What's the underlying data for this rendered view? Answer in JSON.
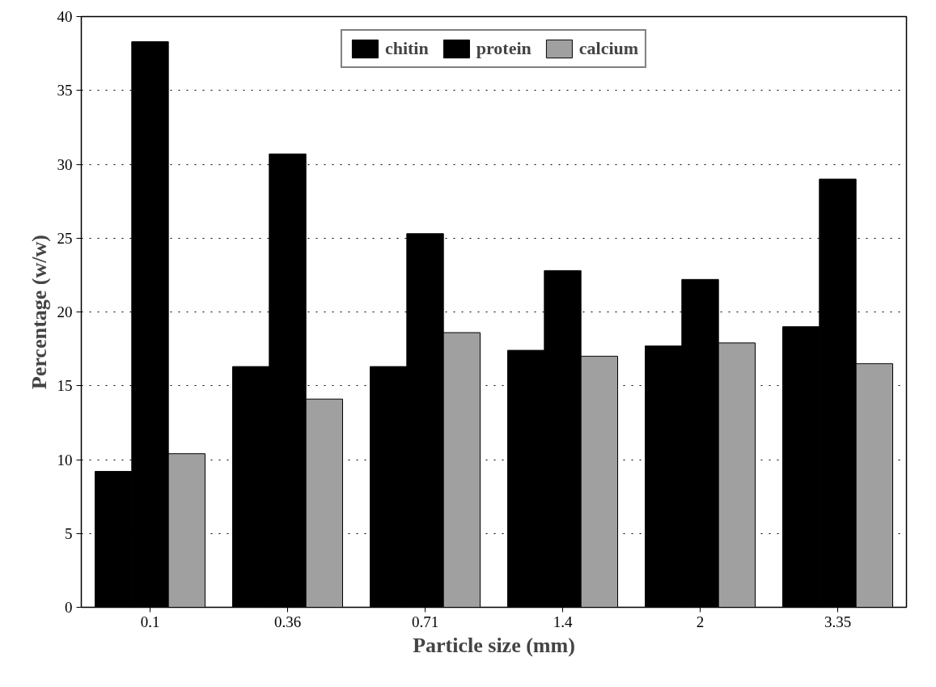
{
  "chart_data": {
    "type": "bar",
    "xlabel": "Particle size (mm)",
    "ylabel": "Percentage (w/w)",
    "categories": [
      "0.1",
      "0.36",
      "0.71",
      "1.4",
      "2",
      "3.35"
    ],
    "series": [
      {
        "name": "chitin",
        "color": "#000000",
        "values": [
          9.2,
          16.3,
          16.3,
          17.4,
          17.7,
          19.0
        ]
      },
      {
        "name": "protein",
        "color": "#000000",
        "values": [
          38.3,
          30.7,
          25.3,
          22.8,
          22.2,
          29.0
        ]
      },
      {
        "name": "calcium",
        "color": "#a0a0a0",
        "values": [
          10.4,
          14.1,
          18.6,
          17.0,
          17.9,
          16.5
        ]
      }
    ],
    "ylim": [
      0,
      40
    ],
    "yticks": [
      0,
      5,
      10,
      15,
      20,
      25,
      30,
      35,
      40
    ],
    "grid": "y",
    "legend": "top"
  }
}
